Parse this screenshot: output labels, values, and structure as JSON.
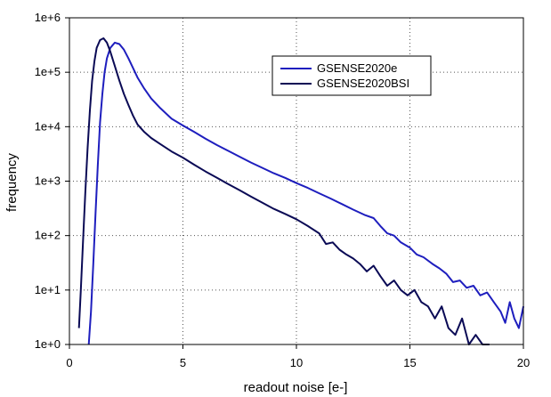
{
  "chart_data": {
    "type": "line",
    "title": "",
    "xlabel": "readout noise [e-]",
    "ylabel": "frequency",
    "xlim": [
      0,
      20
    ],
    "ylim": [
      1,
      1000000
    ],
    "yscale": "log",
    "x_ticks": [
      {
        "value": 0,
        "label": "0"
      },
      {
        "value": 5,
        "label": "5"
      },
      {
        "value": 10,
        "label": "10"
      },
      {
        "value": 15,
        "label": "15"
      },
      {
        "value": 20,
        "label": "20"
      }
    ],
    "y_ticks": [
      {
        "value": 1,
        "label": "1e+0"
      },
      {
        "value": 10,
        "label": "1e+1"
      },
      {
        "value": 100,
        "label": "1e+2"
      },
      {
        "value": 1000,
        "label": "1e+3"
      },
      {
        "value": 10000,
        "label": "1e+4"
      },
      {
        "value": 100000,
        "label": "1e+5"
      },
      {
        "value": 1000000,
        "label": "1e+6"
      }
    ],
    "grid": true,
    "legend_position": "top-right",
    "series": [
      {
        "name": "GSENSE2020e",
        "color": "#1e1ebe",
        "points": [
          [
            0.85,
            1
          ],
          [
            0.95,
            4
          ],
          [
            1.05,
            30
          ],
          [
            1.15,
            250
          ],
          [
            1.25,
            2000
          ],
          [
            1.35,
            12000
          ],
          [
            1.45,
            40000
          ],
          [
            1.55,
            100000
          ],
          [
            1.65,
            180000
          ],
          [
            1.8,
            280000
          ],
          [
            2.0,
            350000
          ],
          [
            2.2,
            330000
          ],
          [
            2.4,
            260000
          ],
          [
            2.6,
            180000
          ],
          [
            2.8,
            120000
          ],
          [
            3.0,
            80000
          ],
          [
            3.3,
            50000
          ],
          [
            3.6,
            33000
          ],
          [
            4.0,
            22000
          ],
          [
            4.5,
            14000
          ],
          [
            5.0,
            10500
          ],
          [
            5.5,
            8000
          ],
          [
            6.0,
            6000
          ],
          [
            6.5,
            4600
          ],
          [
            7.0,
            3600
          ],
          [
            7.5,
            2800
          ],
          [
            8.0,
            2200
          ],
          [
            8.5,
            1750
          ],
          [
            9.0,
            1400
          ],
          [
            9.5,
            1150
          ],
          [
            10.0,
            920
          ],
          [
            10.5,
            750
          ],
          [
            11.0,
            600
          ],
          [
            11.5,
            480
          ],
          [
            12.0,
            380
          ],
          [
            12.5,
            300
          ],
          [
            13.0,
            240
          ],
          [
            13.4,
            210
          ],
          [
            13.7,
            150
          ],
          [
            14.0,
            110
          ],
          [
            14.3,
            100
          ],
          [
            14.6,
            75
          ],
          [
            15.0,
            60
          ],
          [
            15.3,
            45
          ],
          [
            15.6,
            40
          ],
          [
            16.0,
            30
          ],
          [
            16.3,
            25
          ],
          [
            16.6,
            20
          ],
          [
            16.9,
            14
          ],
          [
            17.2,
            15
          ],
          [
            17.5,
            11
          ],
          [
            17.8,
            12
          ],
          [
            18.1,
            8
          ],
          [
            18.4,
            9
          ],
          [
            18.7,
            6
          ],
          [
            19.0,
            4
          ],
          [
            19.2,
            2.5
          ],
          [
            19.4,
            6
          ],
          [
            19.6,
            3
          ],
          [
            19.8,
            2
          ],
          [
            20.0,
            5
          ]
        ]
      },
      {
        "name": "GSENSE2020BSI",
        "color": "#0a0a55",
        "points": [
          [
            0.42,
            2
          ],
          [
            0.5,
            10
          ],
          [
            0.6,
            80
          ],
          [
            0.7,
            600
          ],
          [
            0.8,
            4000
          ],
          [
            0.9,
            20000
          ],
          [
            1.0,
            70000
          ],
          [
            1.1,
            160000
          ],
          [
            1.2,
            280000
          ],
          [
            1.35,
            390000
          ],
          [
            1.5,
            420000
          ],
          [
            1.65,
            350000
          ],
          [
            1.8,
            240000
          ],
          [
            2.0,
            130000
          ],
          [
            2.2,
            70000
          ],
          [
            2.4,
            40000
          ],
          [
            2.6,
            25000
          ],
          [
            2.8,
            16000
          ],
          [
            3.0,
            11000
          ],
          [
            3.3,
            8000
          ],
          [
            3.6,
            6200
          ],
          [
            4.0,
            4800
          ],
          [
            4.5,
            3500
          ],
          [
            5.0,
            2700
          ],
          [
            5.5,
            2000
          ],
          [
            6.0,
            1500
          ],
          [
            6.5,
            1150
          ],
          [
            7.0,
            880
          ],
          [
            7.5,
            680
          ],
          [
            8.0,
            520
          ],
          [
            8.5,
            400
          ],
          [
            9.0,
            310
          ],
          [
            9.5,
            250
          ],
          [
            10.0,
            200
          ],
          [
            10.5,
            150
          ],
          [
            11.0,
            110
          ],
          [
            11.3,
            70
          ],
          [
            11.6,
            75
          ],
          [
            11.9,
            55
          ],
          [
            12.2,
            45
          ],
          [
            12.5,
            38
          ],
          [
            12.8,
            30
          ],
          [
            13.1,
            22
          ],
          [
            13.4,
            28
          ],
          [
            13.7,
            18
          ],
          [
            14.0,
            12
          ],
          [
            14.3,
            15
          ],
          [
            14.6,
            10
          ],
          [
            14.9,
            8
          ],
          [
            15.2,
            10
          ],
          [
            15.5,
            6
          ],
          [
            15.8,
            5
          ],
          [
            16.1,
            3
          ],
          [
            16.4,
            5
          ],
          [
            16.7,
            2
          ],
          [
            17.0,
            1.5
          ],
          [
            17.3,
            3
          ],
          [
            17.6,
            1
          ],
          [
            17.9,
            1.5
          ],
          [
            18.2,
            1
          ],
          [
            18.5,
            1
          ]
        ]
      }
    ]
  }
}
